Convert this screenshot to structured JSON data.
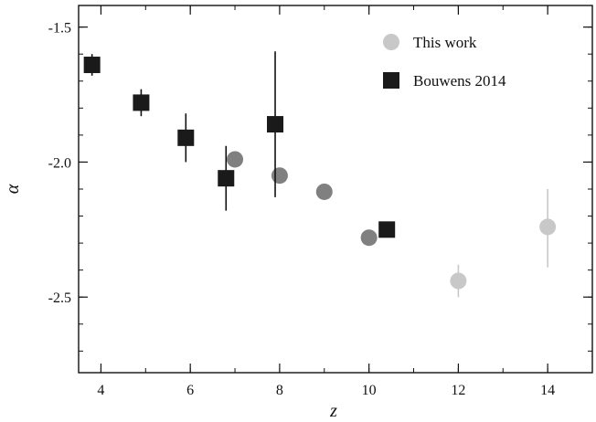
{
  "chart_data": {
    "type": "scatter",
    "title": "",
    "xlabel": "z",
    "ylabel": "α",
    "xlim": [
      3.5,
      15.0
    ],
    "ylim": [
      -2.78,
      -1.42
    ],
    "xticks": [
      4,
      6,
      8,
      10,
      12,
      14
    ],
    "xtick_labels": [
      "4",
      "6",
      "8",
      "10",
      "12",
      "14"
    ],
    "yticks": [
      -1.5,
      -2.0,
      -2.5
    ],
    "ytick_labels": [
      "-1.5",
      "-2.0",
      "-2.5"
    ],
    "grid": false,
    "legend_position": "top-right",
    "series": [
      {
        "name": "This work",
        "marker": "circle",
        "points": [
          {
            "x": 7.0,
            "y": -1.99,
            "yerr_low": 0.0,
            "yerr_high": 0.0,
            "color": "#808080"
          },
          {
            "x": 8.0,
            "y": -2.05,
            "yerr_low": 0.0,
            "yerr_high": 0.0,
            "color": "#808080"
          },
          {
            "x": 9.0,
            "y": -2.11,
            "yerr_low": 0.0,
            "yerr_high": 0.0,
            "color": "#808080"
          },
          {
            "x": 10.0,
            "y": -2.28,
            "yerr_low": 0.03,
            "yerr_high": 0.02,
            "color": "#808080"
          },
          {
            "x": 12.0,
            "y": -2.44,
            "yerr_low": 0.06,
            "yerr_high": 0.06,
            "color": "#c8c8c8"
          },
          {
            "x": 14.0,
            "y": -2.24,
            "yerr_low": 0.15,
            "yerr_high": 0.14,
            "color": "#c8c8c8"
          }
        ]
      },
      {
        "name": "Bouwens 2014",
        "marker": "square",
        "color": "#1a1a1a",
        "points": [
          {
            "x": 3.8,
            "y": -1.64,
            "yerr_low": 0.04,
            "yerr_high": 0.04
          },
          {
            "x": 4.9,
            "y": -1.78,
            "yerr_low": 0.05,
            "yerr_high": 0.05
          },
          {
            "x": 5.9,
            "y": -1.91,
            "yerr_low": 0.09,
            "yerr_high": 0.09
          },
          {
            "x": 6.8,
            "y": -2.06,
            "yerr_low": 0.12,
            "yerr_high": 0.12
          },
          {
            "x": 7.9,
            "y": -1.86,
            "yerr_low": 0.27,
            "yerr_high": 0.27
          },
          {
            "x": 10.4,
            "y": -2.25,
            "yerr_low": 0.0,
            "yerr_high": 0.0
          }
        ]
      }
    ],
    "legend": {
      "entries": [
        {
          "label": "This work",
          "marker": "circle",
          "color": "#c8c8c8"
        },
        {
          "label": "Bouwens 2014",
          "marker": "square",
          "color": "#1a1a1a"
        }
      ]
    }
  }
}
